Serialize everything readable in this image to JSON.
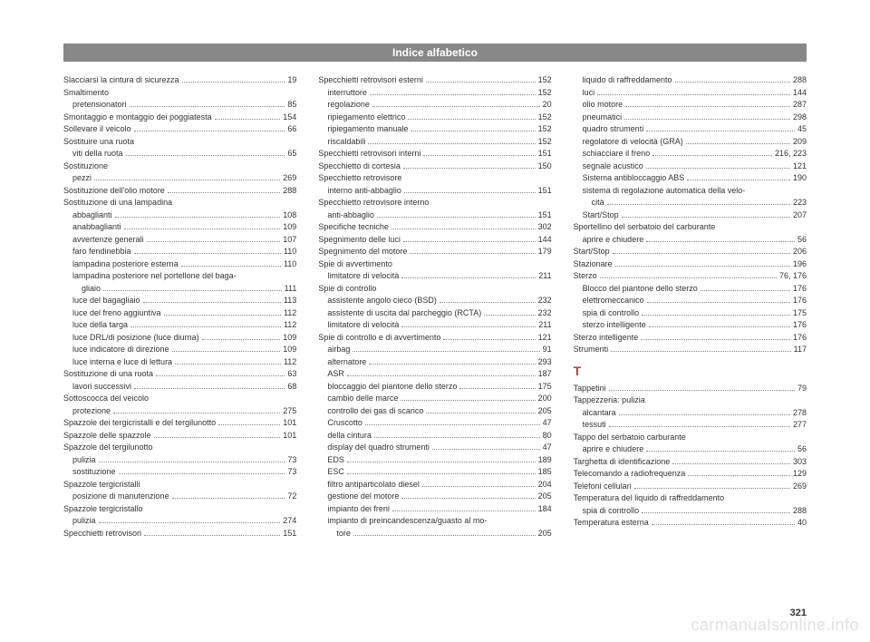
{
  "header": "Indice alfabetico",
  "page_number": "321",
  "watermark": "carmanualsonline.info",
  "section_T": "T",
  "col1": [
    {
      "t": "Slacciarsi la cintura di sicurezza",
      "p": "19"
    },
    {
      "t": "Smaltimento",
      "p": ""
    },
    {
      "t": "pretensionatori",
      "p": "85",
      "i": 1
    },
    {
      "t": "Smontaggio e montaggio dei poggiatesta",
      "p": "154"
    },
    {
      "t": "Sollevare il veicolo",
      "p": "66"
    },
    {
      "t": "Sostituire una ruota",
      "p": ""
    },
    {
      "t": "viti della ruota",
      "p": "65",
      "i": 1
    },
    {
      "t": "Sostituzione",
      "p": ""
    },
    {
      "t": "pezzi",
      "p": "269",
      "i": 1
    },
    {
      "t": "Sostituzione dell'olio motore",
      "p": "288"
    },
    {
      "t": "Sostituzione di una lampadina",
      "p": ""
    },
    {
      "t": "abbaglianti",
      "p": "108",
      "i": 1
    },
    {
      "t": "anabbaglianti",
      "p": "109",
      "i": 1
    },
    {
      "t": "avvertenze generali",
      "p": "107",
      "i": 1
    },
    {
      "t": "faro fendinebbia",
      "p": "110",
      "i": 1
    },
    {
      "t": "lampadina posteriore esterna",
      "p": "110",
      "i": 1
    },
    {
      "t": "lampadina posteriore nel portellone del baga-",
      "p": "",
      "i": 1
    },
    {
      "t": "gliaio",
      "p": "111",
      "i": 2
    },
    {
      "t": "luce del bagagliaio",
      "p": "113",
      "i": 1
    },
    {
      "t": "luce del freno aggiuntiva",
      "p": "112",
      "i": 1
    },
    {
      "t": "luce della targa",
      "p": "112",
      "i": 1
    },
    {
      "t": "luce DRL/di posizione (luce diurna)",
      "p": "109",
      "i": 1
    },
    {
      "t": "luce indicatore di direzione",
      "p": "109",
      "i": 1
    },
    {
      "t": "luce interna e luce di lettura",
      "p": "112",
      "i": 1
    },
    {
      "t": "Sostituzione di una ruota",
      "p": "63"
    },
    {
      "t": "lavori successivi",
      "p": "68",
      "i": 1
    },
    {
      "t": "Sottoscocca del veicolo",
      "p": ""
    },
    {
      "t": "protezione",
      "p": "275",
      "i": 1
    },
    {
      "t": "Spazzole dei tergicristalli e del tergilunotto",
      "p": "101"
    },
    {
      "t": "Spazzole delle spazzole",
      "p": "101"
    },
    {
      "t": "Spazzole del tergilunotto",
      "p": ""
    },
    {
      "t": "pulizia",
      "p": "73",
      "i": 1
    },
    {
      "t": "sostituzione",
      "p": "73",
      "i": 1
    },
    {
      "t": "Spazzole tergicristalli",
      "p": ""
    },
    {
      "t": "posizione di manutenzione",
      "p": "72",
      "i": 1
    },
    {
      "t": "Spazzole tergicristallo",
      "p": ""
    },
    {
      "t": "pulizia",
      "p": "274",
      "i": 1
    },
    {
      "t": "Specchietti retrovisori",
      "p": "151"
    }
  ],
  "col2": [
    {
      "t": "Specchietti retrovisori esterni",
      "p": "152"
    },
    {
      "t": "interruttore",
      "p": "152",
      "i": 1
    },
    {
      "t": "regolazione",
      "p": "20",
      "i": 1
    },
    {
      "t": "ripiegamento elettrico",
      "p": "152",
      "i": 1
    },
    {
      "t": "ripiegamento manuale",
      "p": "152",
      "i": 1
    },
    {
      "t": "riscaldabili",
      "p": "152",
      "i": 1
    },
    {
      "t": "Specchietti retrovisori interni",
      "p": "151"
    },
    {
      "t": "Specchietto di cortesia",
      "p": "150"
    },
    {
      "t": "Specchietto retrovisore",
      "p": ""
    },
    {
      "t": "interno anti-abbaglio",
      "p": "151",
      "i": 1
    },
    {
      "t": "Specchietto retrovisore interno",
      "p": ""
    },
    {
      "t": "anti-abbaglio",
      "p": "151",
      "i": 1
    },
    {
      "t": "Specifiche tecniche",
      "p": "302"
    },
    {
      "t": "Spegnimento delle luci",
      "p": "144"
    },
    {
      "t": "Spegnimento del motore",
      "p": "179"
    },
    {
      "t": "Spie di avvertimento",
      "p": ""
    },
    {
      "t": "limitatore di velocità",
      "p": "211",
      "i": 1
    },
    {
      "t": "Spie di controllo",
      "p": ""
    },
    {
      "t": "assistente angolo cieco (BSD)",
      "p": "232",
      "i": 1
    },
    {
      "t": "assistente di uscita dal parcheggio (RCTA)",
      "p": "232",
      "i": 1
    },
    {
      "t": "limitatore di velocità",
      "p": "211",
      "i": 1
    },
    {
      "t": "Spie di controllo e di avvertimento",
      "p": "121"
    },
    {
      "t": "airbag",
      "p": "91",
      "i": 1
    },
    {
      "t": "alternatore",
      "p": "293",
      "i": 1
    },
    {
      "t": "ASR",
      "p": "187",
      "i": 1
    },
    {
      "t": "bloccaggio del piantone dello sterzo",
      "p": "175",
      "i": 1
    },
    {
      "t": "cambio delle marce",
      "p": "200",
      "i": 1
    },
    {
      "t": "controllo dei gas di scarico",
      "p": "205",
      "i": 1
    },
    {
      "t": "Cruscotto",
      "p": "47",
      "i": 1
    },
    {
      "t": "della cintura",
      "p": "80",
      "i": 1
    },
    {
      "t": "display del quadro strumenti",
      "p": "47",
      "i": 1
    },
    {
      "t": "EDS",
      "p": "189",
      "i": 1
    },
    {
      "t": "ESC",
      "p": "185",
      "i": 1
    },
    {
      "t": "filtro antiparticolato diesel",
      "p": "204",
      "i": 1
    },
    {
      "t": "gestione del motore",
      "p": "205",
      "i": 1
    },
    {
      "t": "impianto dei freni",
      "p": "184",
      "i": 1
    },
    {
      "t": "impianto di preincandescenza/guasto al mo-",
      "p": "",
      "i": 1
    },
    {
      "t": "tore",
      "p": "205",
      "i": 2
    }
  ],
  "col3a": [
    {
      "t": "liquido di raffreddamento",
      "p": "288",
      "i": 1
    },
    {
      "t": "luci",
      "p": "144",
      "i": 1
    },
    {
      "t": "olio motore",
      "p": "287",
      "i": 1
    },
    {
      "t": "pneumatici",
      "p": "298",
      "i": 1
    },
    {
      "t": "quadro strumenti",
      "p": "45",
      "i": 1
    },
    {
      "t": "regolatore di velocità (GRA)",
      "p": "209",
      "i": 1
    },
    {
      "t": "schiacciare il freno",
      "p": "216, 223",
      "i": 1
    },
    {
      "t": "segnale acustico",
      "p": "121",
      "i": 1
    },
    {
      "t": "Sistema antibloccaggio ABS",
      "p": "190",
      "i": 1
    },
    {
      "t": "sistema di regolazione automatica della velo-",
      "p": "",
      "i": 1
    },
    {
      "t": "cità",
      "p": "223",
      "i": 2
    },
    {
      "t": "Start/Stop",
      "p": "207",
      "i": 1
    },
    {
      "t": "Sportellino del serbatoio del carburante",
      "p": ""
    },
    {
      "t": "aprire e chiudere",
      "p": "56",
      "i": 1
    },
    {
      "t": "Start/Stop",
      "p": "206"
    },
    {
      "t": "Stazionare",
      "p": "196"
    },
    {
      "t": "Sterzo",
      "p": "76, 176"
    },
    {
      "t": "Blocco del piantone dello sterzo",
      "p": "176",
      "i": 1
    },
    {
      "t": "elettromeccanico",
      "p": "176",
      "i": 1
    },
    {
      "t": "spia di controllo",
      "p": "175",
      "i": 1
    },
    {
      "t": "sterzo intelligente",
      "p": "176",
      "i": 1
    },
    {
      "t": "Sterzo intelligente",
      "p": "176"
    },
    {
      "t": "Strumenti",
      "p": "117"
    }
  ],
  "col3b": [
    {
      "t": "Tappetini",
      "p": "79"
    },
    {
      "t": "Tappezzeria: pulizia",
      "p": ""
    },
    {
      "t": "alcantara",
      "p": "278",
      "i": 1
    },
    {
      "t": "tessuti",
      "p": "277",
      "i": 1
    },
    {
      "t": "Tappo del serbatoio carburante",
      "p": ""
    },
    {
      "t": "aprire e chiudere",
      "p": "56",
      "i": 1
    },
    {
      "t": "Targhetta di identificazione",
      "p": "303"
    },
    {
      "t": "Telecomando a radiofrequenza",
      "p": "129"
    },
    {
      "t": "Telefoni cellulari",
      "p": "269"
    },
    {
      "t": "Temperatura del liquido di raffreddamento",
      "p": ""
    },
    {
      "t": "spia di controllo",
      "p": "288",
      "i": 1
    },
    {
      "t": "Temperatura esterna",
      "p": "40"
    }
  ]
}
